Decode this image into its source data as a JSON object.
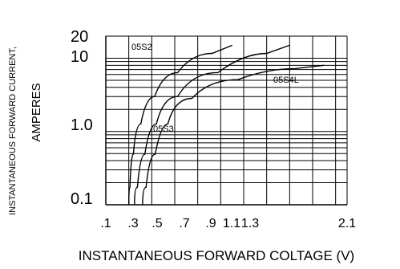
{
  "chart_data": {
    "type": "line",
    "title": "",
    "xlabel": "INSTANTANEOUS FORWARD COLTAGE (V)",
    "ylabel_line1": "INSTANTANEOUS FORWARD CURRENT,",
    "ylabel_line2": "AMPERES",
    "y_scale": "log",
    "ylim": [
      0.1,
      20
    ],
    "xlim": [
      0.1,
      2.2
    ],
    "grid": true,
    "x_tick_labels": [
      ".1",
      ".3",
      ".5",
      ".7",
      ".9",
      "1.1",
      "1.3",
      "2.1"
    ],
    "y_tick_labels": [
      "20",
      "10",
      "1.0",
      "0.1"
    ],
    "series": [
      {
        "name": "05S2",
        "x": [
          0.3,
          0.32,
          0.36,
          0.45,
          0.6,
          0.85,
          1.2
        ],
        "y": [
          0.1,
          0.3,
          0.8,
          2.0,
          4.5,
          9.0,
          15.0
        ]
      },
      {
        "name": "05S3",
        "x": [
          0.35,
          0.4,
          0.48,
          0.6,
          0.85,
          1.3,
          1.7
        ],
        "y": [
          0.1,
          0.3,
          0.8,
          2.0,
          4.5,
          9.0,
          15.0
        ]
      },
      {
        "name": "05S4L",
        "x": [
          0.42,
          0.48,
          0.58,
          0.7,
          1.0,
          1.5,
          2.0
        ],
        "y": [
          0.1,
          0.3,
          0.8,
          2.0,
          4.0,
          6.5,
          8.0
        ]
      }
    ],
    "series_labels": [
      "05S2",
      "05S3",
      "05S4L"
    ]
  }
}
